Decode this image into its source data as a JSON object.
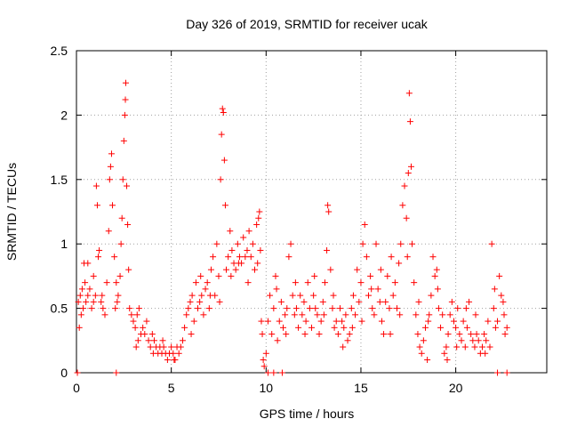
{
  "chart_data": {
    "type": "scatter",
    "title": "Day 326 of 2019, SRMTID for receiver ucak",
    "xlabel": "GPS time / hours",
    "ylabel": "SRMTID / TECUs",
    "xlim": [
      0,
      24.8
    ],
    "ylim": [
      0,
      2.5
    ],
    "xticks": [
      "0",
      "5",
      "10",
      "15",
      "20"
    ],
    "xtick_values": [
      0,
      5,
      10,
      15,
      20
    ],
    "yticks": [
      "0",
      "0.5",
      "1",
      "1.5",
      "2",
      "2.5"
    ],
    "ytick_values": [
      0,
      0.5,
      1,
      1.5,
      2,
      2.5
    ],
    "grid": true,
    "marker": "+",
    "series_color": "#ff0000",
    "series": [
      {
        "name": "SRMTID",
        "points": [
          [
            0.1,
            0.55
          ],
          [
            0.15,
            0.35
          ],
          [
            0.2,
            0.6
          ],
          [
            0.25,
            0.45
          ],
          [
            0.3,
            0.65
          ],
          [
            0.35,
            0.5
          ],
          [
            0.4,
            0.85
          ],
          [
            0.45,
            0.7
          ],
          [
            0.5,
            0.55
          ],
          [
            0.6,
            0.6
          ],
          [
            0.7,
            0.65
          ],
          [
            0.8,
            0.5
          ],
          [
            0.9,
            0.55
          ],
          [
            1.0,
            0.6
          ],
          [
            1.05,
            1.45
          ],
          [
            1.1,
            1.3
          ],
          [
            1.15,
            0.9
          ],
          [
            1.2,
            0.95
          ],
          [
            1.3,
            0.55
          ],
          [
            1.4,
            0.5
          ],
          [
            1.5,
            0.45
          ],
          [
            1.6,
            0.7
          ],
          [
            1.7,
            1.1
          ],
          [
            1.75,
            1.5
          ],
          [
            1.8,
            1.6
          ],
          [
            1.85,
            1.7
          ],
          [
            1.9,
            1.3
          ],
          [
            2.0,
            0.9
          ],
          [
            2.1,
            0.7
          ],
          [
            2.2,
            0.6
          ],
          [
            2.3,
            0.75
          ],
          [
            2.35,
            1.0
          ],
          [
            2.4,
            1.2
          ],
          [
            2.45,
            1.5
          ],
          [
            2.5,
            1.8
          ],
          [
            2.55,
            2.0
          ],
          [
            2.58,
            2.12
          ],
          [
            2.6,
            2.25
          ],
          [
            2.65,
            1.45
          ],
          [
            2.7,
            1.15
          ],
          [
            2.75,
            0.8
          ],
          [
            2.8,
            0.5
          ],
          [
            2.9,
            0.45
          ],
          [
            3.0,
            0.4
          ],
          [
            3.1,
            0.35
          ],
          [
            3.2,
            0.45
          ],
          [
            3.3,
            0.5
          ],
          [
            3.4,
            0.3
          ],
          [
            3.5,
            0.35
          ],
          [
            3.6,
            0.3
          ],
          [
            3.7,
            0.4
          ],
          [
            3.8,
            0.25
          ],
          [
            3.9,
            0.2
          ],
          [
            4.0,
            0.3
          ],
          [
            4.1,
            0.25
          ],
          [
            4.2,
            0.2
          ],
          [
            4.3,
            0.15
          ],
          [
            4.4,
            0.2
          ],
          [
            4.5,
            0.15
          ],
          [
            4.6,
            0.2
          ],
          [
            4.7,
            0.15
          ],
          [
            4.8,
            0.1
          ],
          [
            4.9,
            0.15
          ],
          [
            5.0,
            0.2
          ],
          [
            5.1,
            0.15
          ],
          [
            5.2,
            0.1
          ],
          [
            5.3,
            0.2
          ],
          [
            5.4,
            0.15
          ],
          [
            5.5,
            0.2
          ],
          [
            5.6,
            0.25
          ],
          [
            5.7,
            0.35
          ],
          [
            5.8,
            0.45
          ],
          [
            5.9,
            0.5
          ],
          [
            6.0,
            0.55
          ],
          [
            6.1,
            0.6
          ],
          [
            6.2,
            0.4
          ],
          [
            6.3,
            0.7
          ],
          [
            6.4,
            0.5
          ],
          [
            6.5,
            0.55
          ],
          [
            6.6,
            0.6
          ],
          [
            6.7,
            0.45
          ],
          [
            6.8,
            0.65
          ],
          [
            6.9,
            0.7
          ],
          [
            7.0,
            0.5
          ],
          [
            7.1,
            0.8
          ],
          [
            7.2,
            0.9
          ],
          [
            7.3,
            0.6
          ],
          [
            7.4,
            1.0
          ],
          [
            7.5,
            0.75
          ],
          [
            7.6,
            1.5
          ],
          [
            7.65,
            1.85
          ],
          [
            7.7,
            2.05
          ],
          [
            7.75,
            2.02
          ],
          [
            7.8,
            1.65
          ],
          [
            7.85,
            1.3
          ],
          [
            7.9,
            0.8
          ],
          [
            8.0,
            0.9
          ],
          [
            8.1,
            1.1
          ],
          [
            8.2,
            0.95
          ],
          [
            8.3,
            0.85
          ],
          [
            8.4,
            0.8
          ],
          [
            8.5,
            1.0
          ],
          [
            8.6,
            0.9
          ],
          [
            8.7,
            0.85
          ],
          [
            8.8,
            1.05
          ],
          [
            8.9,
            0.9
          ],
          [
            9.0,
            0.95
          ],
          [
            9.1,
            1.1
          ],
          [
            9.2,
            0.9
          ],
          [
            9.3,
            1.0
          ],
          [
            9.4,
            0.8
          ],
          [
            9.5,
            1.15
          ],
          [
            9.6,
            1.2
          ],
          [
            9.65,
            1.25
          ],
          [
            9.7,
            0.95
          ],
          [
            9.75,
            0.4
          ],
          [
            9.8,
            0.3
          ],
          [
            9.85,
            0.1
          ],
          [
            9.9,
            0.05
          ],
          [
            10.0,
            0.15
          ],
          [
            10.1,
            0.4
          ],
          [
            10.2,
            0.6
          ],
          [
            10.3,
            0.3
          ],
          [
            10.4,
            0.5
          ],
          [
            10.5,
            0.75
          ],
          [
            10.6,
            0.25
          ],
          [
            10.7,
            0.4
          ],
          [
            10.8,
            0.55
          ],
          [
            10.9,
            0.35
          ],
          [
            11.0,
            0.45
          ],
          [
            11.1,
            0.5
          ],
          [
            11.2,
            0.9
          ],
          [
            11.3,
            1.0
          ],
          [
            11.4,
            0.6
          ],
          [
            11.5,
            0.45
          ],
          [
            11.6,
            0.5
          ],
          [
            11.7,
            0.35
          ],
          [
            11.8,
            0.6
          ],
          [
            11.9,
            0.45
          ],
          [
            12.0,
            0.55
          ],
          [
            12.1,
            0.4
          ],
          [
            12.2,
            0.7
          ],
          [
            12.3,
            0.5
          ],
          [
            12.4,
            0.35
          ],
          [
            12.5,
            0.6
          ],
          [
            12.6,
            0.5
          ],
          [
            12.7,
            0.45
          ],
          [
            12.8,
            0.3
          ],
          [
            12.9,
            0.4
          ],
          [
            13.0,
            0.55
          ],
          [
            13.1,
            0.7
          ],
          [
            13.2,
            0.95
          ],
          [
            13.25,
            1.3
          ],
          [
            13.3,
            1.25
          ],
          [
            13.4,
            0.8
          ],
          [
            13.5,
            0.5
          ],
          [
            13.6,
            0.35
          ],
          [
            13.7,
            0.4
          ],
          [
            13.8,
            0.3
          ],
          [
            13.9,
            0.5
          ],
          [
            14.0,
            0.4
          ],
          [
            14.1,
            0.35
          ],
          [
            14.2,
            0.45
          ],
          [
            14.3,
            0.25
          ],
          [
            14.4,
            0.3
          ],
          [
            14.5,
            0.5
          ],
          [
            14.6,
            0.6
          ],
          [
            14.7,
            0.45
          ],
          [
            14.8,
            0.8
          ],
          [
            14.9,
            0.55
          ],
          [
            15.0,
            0.7
          ],
          [
            15.1,
            1.0
          ],
          [
            15.2,
            1.15
          ],
          [
            15.3,
            0.9
          ],
          [
            15.4,
            0.6
          ],
          [
            15.5,
            0.75
          ],
          [
            15.6,
            0.5
          ],
          [
            15.7,
            0.45
          ],
          [
            15.8,
            1.0
          ],
          [
            15.9,
            0.65
          ],
          [
            16.0,
            0.55
          ],
          [
            16.1,
            0.4
          ],
          [
            16.2,
            0.3
          ],
          [
            16.3,
            0.55
          ],
          [
            16.4,
            0.75
          ],
          [
            16.5,
            0.5
          ],
          [
            16.6,
            0.9
          ],
          [
            16.7,
            0.6
          ],
          [
            16.8,
            0.7
          ],
          [
            16.9,
            0.5
          ],
          [
            17.0,
            0.85
          ],
          [
            17.1,
            1.0
          ],
          [
            17.2,
            1.3
          ],
          [
            17.3,
            1.45
          ],
          [
            17.4,
            1.2
          ],
          [
            17.5,
            1.55
          ],
          [
            17.55,
            2.17
          ],
          [
            17.6,
            1.95
          ],
          [
            17.65,
            1.6
          ],
          [
            17.7,
            1.0
          ],
          [
            17.8,
            0.7
          ],
          [
            17.9,
            0.45
          ],
          [
            18.0,
            0.3
          ],
          [
            18.1,
            0.2
          ],
          [
            18.2,
            0.15
          ],
          [
            18.3,
            0.25
          ],
          [
            18.4,
            0.35
          ],
          [
            18.5,
            0.1
          ],
          [
            18.6,
            0.45
          ],
          [
            18.7,
            0.6
          ],
          [
            18.8,
            0.9
          ],
          [
            18.9,
            0.75
          ],
          [
            19.0,
            0.8
          ],
          [
            19.1,
            0.5
          ],
          [
            19.2,
            0.35
          ],
          [
            19.3,
            0.45
          ],
          [
            19.4,
            0.15
          ],
          [
            19.5,
            0.2
          ],
          [
            19.6,
            0.3
          ],
          [
            19.7,
            0.45
          ],
          [
            19.8,
            0.55
          ],
          [
            19.9,
            0.4
          ],
          [
            20.0,
            0.35
          ],
          [
            20.1,
            0.5
          ],
          [
            20.2,
            0.3
          ],
          [
            20.3,
            0.25
          ],
          [
            20.4,
            0.4
          ],
          [
            20.5,
            0.2
          ],
          [
            20.6,
            0.35
          ],
          [
            20.7,
            0.55
          ],
          [
            20.8,
            0.3
          ],
          [
            20.9,
            0.25
          ],
          [
            21.0,
            0.2
          ],
          [
            21.1,
            0.3
          ],
          [
            21.2,
            0.25
          ],
          [
            21.3,
            0.15
          ],
          [
            21.4,
            0.2
          ],
          [
            21.5,
            0.3
          ],
          [
            21.6,
            0.25
          ],
          [
            21.7,
            0.4
          ],
          [
            21.8,
            0.2
          ],
          [
            21.9,
            1.0
          ],
          [
            22.0,
            0.5
          ],
          [
            22.1,
            0.35
          ],
          [
            22.2,
            0.4
          ],
          [
            22.3,
            0.75
          ],
          [
            22.4,
            0.6
          ],
          [
            22.5,
            0.55
          ],
          [
            22.6,
            0.3
          ],
          [
            22.7,
            0.35
          ],
          [
            0.6,
            0.85
          ],
          [
            0.9,
            0.75
          ],
          [
            1.35,
            0.6
          ],
          [
            2.05,
            0.5
          ],
          [
            2.15,
            0.55
          ],
          [
            3.15,
            0.2
          ],
          [
            3.25,
            0.25
          ],
          [
            4.05,
            0.15
          ],
          [
            4.55,
            0.25
          ],
          [
            5.15,
            0.1
          ],
          [
            6.05,
            0.3
          ],
          [
            6.55,
            0.75
          ],
          [
            7.05,
            0.6
          ],
          [
            7.55,
            0.55
          ],
          [
            8.15,
            0.75
          ],
          [
            8.55,
            0.85
          ],
          [
            9.05,
            0.7
          ],
          [
            9.55,
            0.85
          ],
          [
            10.55,
            0.65
          ],
          [
            11.05,
            0.3
          ],
          [
            11.55,
            0.7
          ],
          [
            12.05,
            0.3
          ],
          [
            12.55,
            0.75
          ],
          [
            13.05,
            0.45
          ],
          [
            13.55,
            0.6
          ],
          [
            14.05,
            0.2
          ],
          [
            14.55,
            0.35
          ],
          [
            15.05,
            0.4
          ],
          [
            15.55,
            0.65
          ],
          [
            16.05,
            0.8
          ],
          [
            16.55,
            0.3
          ],
          [
            17.05,
            0.45
          ],
          [
            17.45,
            0.9
          ],
          [
            18.05,
            0.55
          ],
          [
            18.55,
            0.4
          ],
          [
            19.05,
            0.65
          ],
          [
            19.55,
            0.1
          ],
          [
            20.05,
            0.2
          ],
          [
            20.55,
            0.5
          ],
          [
            21.05,
            0.45
          ],
          [
            21.55,
            0.15
          ],
          [
            22.05,
            0.65
          ],
          [
            22.55,
            0.45
          ],
          [
            0.05,
            0.0
          ],
          [
            2.1,
            0.0
          ],
          [
            10.1,
            0.0
          ],
          [
            10.4,
            0.0
          ],
          [
            10.85,
            0.0
          ],
          [
            22.2,
            0.0
          ],
          [
            22.7,
            0.0
          ]
        ]
      }
    ]
  }
}
